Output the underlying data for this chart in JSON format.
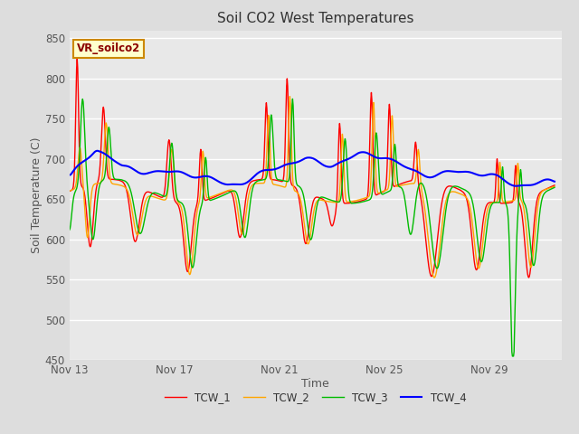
{
  "title": "Soil CO2 West Temperatures",
  "xlabel": "Time",
  "ylabel": "Soil Temperature (C)",
  "ylim": [
    450,
    860
  ],
  "yticks": [
    450,
    500,
    550,
    600,
    650,
    700,
    750,
    800,
    850
  ],
  "annotation_text": "VR_soilco2",
  "line_colors": {
    "TCW_1": "#ff0000",
    "TCW_2": "#ffa500",
    "TCW_3": "#00bb00",
    "TCW_4": "#0000ff"
  },
  "legend_labels": [
    "TCW_1",
    "TCW_2",
    "TCW_3",
    "TCW_4"
  ],
  "fig_bg_color": "#dddddd",
  "plot_bg_color": "#e8e8e8",
  "grid_color": "#ffffff",
  "title_fontsize": 11,
  "axis_label_fontsize": 9,
  "xtick_labels": [
    "Nov 13",
    "Nov 17",
    "Nov 21",
    "Nov 25",
    "Nov 29"
  ],
  "xtick_positions": [
    13,
    17,
    21,
    25,
    29
  ]
}
